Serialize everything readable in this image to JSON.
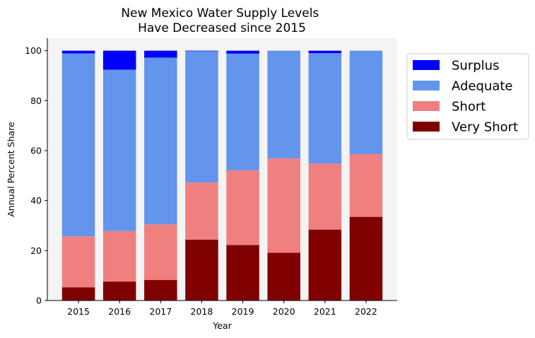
{
  "chart_data": {
    "type": "bar",
    "stacked": true,
    "title": "New Mexico Water Supply Levels\nHave Decreased since 2015",
    "xlabel": "Year",
    "ylabel": "Annual Percent Share",
    "ylim": [
      0,
      105
    ],
    "yticks": [
      0,
      20,
      40,
      60,
      80,
      100
    ],
    "categories": [
      "2015",
      "2016",
      "2017",
      "2018",
      "2019",
      "2020",
      "2021",
      "2022"
    ],
    "legend_position": "outside-right-top",
    "background": "#f4f4f4",
    "series": [
      {
        "name": "Very Short",
        "color": "#800000",
        "values": [
          5.3,
          7.6,
          8.2,
          24.4,
          22.2,
          19.1,
          28.4,
          33.5
        ]
      },
      {
        "name": "Short",
        "color": "#f08080",
        "values": [
          20.4,
          20.2,
          22.3,
          22.8,
          29.9,
          37.8,
          26.4,
          25.1
        ]
      },
      {
        "name": "Adequate",
        "color": "#6495ed",
        "values": [
          73.2,
          64.6,
          66.7,
          52.6,
          46.7,
          43.1,
          44.2,
          41.4
        ]
      },
      {
        "name": "Surplus",
        "color": "#0000ff",
        "values": [
          1.1,
          7.6,
          2.8,
          0.2,
          1.2,
          0.0,
          1.0,
          0.0
        ]
      }
    ]
  }
}
